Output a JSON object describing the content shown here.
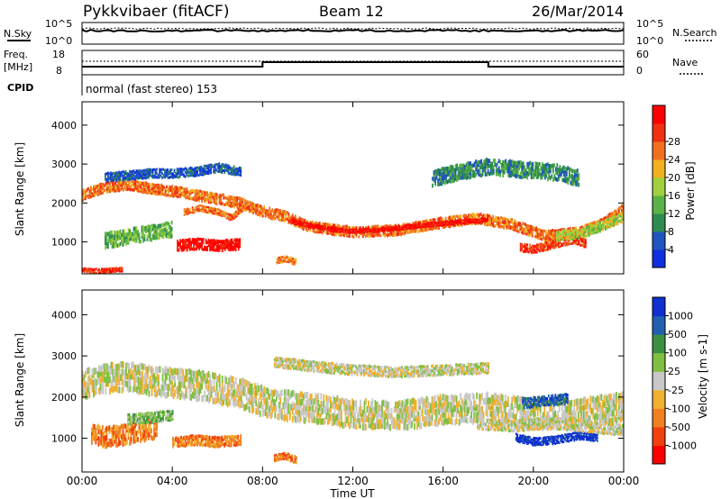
{
  "header": {
    "station": "Pykkvibaer (fitACF)",
    "beam": "Beam 12",
    "date": "26/Mar/2014"
  },
  "status_panels": {
    "nsky_label": "N.Sky",
    "nsky_ticks": [
      "10^5",
      "10^0"
    ],
    "nsearch_label": "N.Search",
    "nsearch_ticks": [
      "10^5",
      "10^0"
    ],
    "freq_label": "Freq.",
    "freq_unit": "[MHz]",
    "freq_ticks": [
      "18",
      "8"
    ],
    "nave_label": "Nave",
    "nave_ticks": [
      "60",
      "0"
    ],
    "cpid_label": "CPID",
    "cpid_value": "normal (fast stereo) 153"
  },
  "chart_data": [
    {
      "type": "heatmap",
      "name": "power",
      "ylabel": "Slant Range [km]",
      "ylim": [
        180,
        4600
      ],
      "yticks": [
        1000,
        2000,
        3000,
        4000
      ],
      "xlim": [
        0,
        24
      ],
      "colorbar": {
        "label": "Power [dB]",
        "ticks": [
          "4",
          "8",
          "12",
          "16",
          "20",
          "24",
          "28"
        ],
        "colors": [
          "#1030e0",
          "#2055c0",
          "#2f8c50",
          "#5bb246",
          "#a0d040",
          "#f0b020",
          "#f07020",
          "#f03010",
          "#ff0000"
        ]
      },
      "regions": [
        {
          "t": [
            0.0,
            1.0,
            2.0,
            3.0,
            4.0,
            5.0,
            6.0,
            7.0,
            7.6,
            8.2,
            9.0,
            10.0,
            12.0,
            14.0,
            16.0,
            17.5,
            19.0,
            20.5,
            22.0,
            23.0,
            24.0
          ],
          "y": [
            2250,
            2450,
            2520,
            2420,
            2350,
            2250,
            2150,
            2050,
            1900,
            1800,
            1700,
            1450,
            1300,
            1350,
            1550,
            1650,
            1500,
            1200,
            1300,
            1500,
            1900
          ],
          "w": 280,
          "level": 6
        },
        {
          "t": [
            9.3,
            10.0,
            11.0,
            12.0,
            13.0,
            14.0,
            15.0,
            16.0,
            17.0,
            18.0
          ],
          "y": [
            1550,
            1450,
            1350,
            1300,
            1330,
            1380,
            1450,
            1500,
            1550,
            1600
          ],
          "w": 120,
          "level": 8
        },
        {
          "t": [
            1.0,
            2.0,
            3.0,
            4.0,
            5.0,
            6.0,
            7.0
          ],
          "y": [
            2700,
            2750,
            2800,
            2800,
            2850,
            2950,
            2850
          ],
          "w": 240,
          "level": 1
        },
        {
          "t": [
            4.5,
            5.2,
            6.0,
            6.6,
            7.3
          ],
          "y": [
            1800,
            1900,
            1800,
            1650,
            2000
          ],
          "w": 160,
          "level": 6
        },
        {
          "t": [
            4.2,
            5.0,
            6.0,
            7.0
          ],
          "y": [
            950,
            1000,
            950,
            1000
          ],
          "w": 300,
          "level": 8
        },
        {
          "t": [
            1.0,
            2.0,
            3.0,
            4.0
          ],
          "y": [
            1100,
            1200,
            1300,
            1400
          ],
          "w": 400,
          "level": 3
        },
        {
          "t": [
            0.0,
            0.6,
            1.2,
            1.8
          ],
          "y": [
            300,
            280,
            300,
            320
          ],
          "w": 120,
          "level": 7
        },
        {
          "t": [
            8.6,
            9.0,
            9.5
          ],
          "y": [
            550,
            600,
            500
          ],
          "w": 160,
          "level": 6
        },
        {
          "t": [
            15.5,
            17.0,
            18.0,
            19.0,
            20.0,
            21.0,
            22.0
          ],
          "y": [
            2700,
            2900,
            3000,
            2950,
            2900,
            2850,
            2700
          ],
          "w": 420,
          "level": 2
        },
        {
          "t": [
            19.4,
            20.0,
            21.0,
            21.8,
            22.3
          ],
          "y": [
            900,
            850,
            1000,
            1100,
            1000
          ],
          "w": 220,
          "level": 7
        },
        {
          "t": [
            21.0,
            22.0,
            23.0,
            24.0
          ],
          "y": [
            1200,
            1250,
            1450,
            1700
          ],
          "w": 260,
          "level": 4
        }
      ]
    },
    {
      "type": "heatmap",
      "name": "velocity",
      "ylabel": "Slant Range [km]",
      "ylim": [
        180,
        4600
      ],
      "yticks": [
        1000,
        2000,
        3000,
        4000
      ],
      "xlim": [
        0,
        24
      ],
      "xticks": [
        "00:00",
        "04:00",
        "08:00",
        "12:00",
        "16:00",
        "20:00",
        "00:00"
      ],
      "xlabel": "Time UT",
      "colorbar": {
        "label": "Velocity [m s-1]",
        "ticks": [
          "1000",
          "500",
          "100",
          "25",
          "-25",
          "-100",
          "-500",
          "-1000"
        ],
        "colors": [
          "#1030d0",
          "#2060b0",
          "#3a9040",
          "#80c040",
          "#c8c8c8",
          "#f0b030",
          "#f08020",
          "#f04010",
          "#ff0000"
        ]
      },
      "regions": [
        {
          "t": [
            0.0,
            1.0,
            2.0,
            3.0,
            4.0,
            5.0,
            6.0,
            7.0,
            8.0,
            9.0,
            10.0,
            12.0,
            14.0,
            16.0,
            18.0,
            20.0,
            22.0,
            24.0
          ],
          "y": [
            2400,
            2550,
            2600,
            2500,
            2450,
            2400,
            2300,
            2200,
            2000,
            1900,
            1850,
            1700,
            1650,
            1800,
            1850,
            1700,
            1700,
            1900
          ],
          "w": 700,
          "level": 4
        },
        {
          "t": [
            8.5,
            10.0,
            12.0,
            14.0,
            16.0,
            18.0
          ],
          "y": [
            2900,
            2800,
            2700,
            2650,
            2700,
            2750
          ],
          "w": 260,
          "level": 4
        },
        {
          "t": [
            0.4,
            1.0,
            1.8,
            2.6,
            3.3
          ],
          "y": [
            1200,
            1100,
            1150,
            1250,
            1300
          ],
          "w": 500,
          "level": 6
        },
        {
          "t": [
            4.0,
            5.0,
            6.0,
            7.0
          ],
          "y": [
            950,
            1000,
            950,
            1000
          ],
          "w": 260,
          "level": 6
        },
        {
          "t": [
            2.0,
            3.0,
            4.0
          ],
          "y": [
            1500,
            1550,
            1600
          ],
          "w": 260,
          "level": 3
        },
        {
          "t": [
            8.5,
            9.0,
            9.5
          ],
          "y": [
            550,
            600,
            500
          ],
          "w": 180,
          "level": 6
        },
        {
          "t": [
            19.2,
            20.0,
            21.0,
            22.0,
            22.8
          ],
          "y": [
            1050,
            950,
            1000,
            1100,
            1050
          ],
          "w": 200,
          "level": 0
        },
        {
          "t": [
            17.5,
            19.0,
            21.0,
            23.0,
            24.0
          ],
          "y": [
            1400,
            1350,
            1400,
            1300,
            1250
          ],
          "w": 280,
          "level": 4
        },
        {
          "t": [
            19.5,
            20.5,
            21.5
          ],
          "y": [
            1900,
            1950,
            2000
          ],
          "w": 260,
          "level": 1
        }
      ]
    }
  ]
}
